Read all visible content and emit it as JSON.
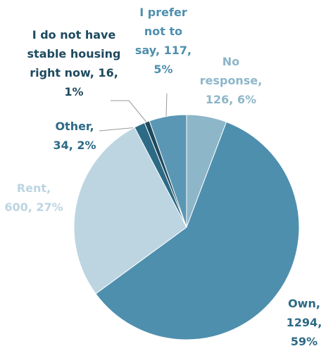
{
  "chart_data": {
    "type": "pie",
    "values": [
      126,
      1294,
      600,
      34,
      16,
      117
    ],
    "value_labels": [
      [
        "No",
        "response,",
        "126, 6%"
      ],
      [
        "Own,",
        "1294,",
        "59%"
      ],
      [
        "Rent,",
        "600, 27%"
      ],
      [
        "Other,",
        "34, 2%"
      ],
      [
        "I do not have",
        "stable housing",
        "right now, 16,",
        "1%"
      ],
      [
        "I prefer",
        "not to",
        "say, 117,",
        "5%"
      ]
    ],
    "colors": [
      "#8db6c9",
      "#4f8fae",
      "#bcd5e1",
      "#2d6a85",
      "#1e4a5f",
      "#5a97b5"
    ],
    "label_colors": [
      "#8db6c9",
      "#2d6a85",
      "#bcd5e1",
      "#2d6a85",
      "#1e4a5f",
      "#4f8fae"
    ]
  }
}
